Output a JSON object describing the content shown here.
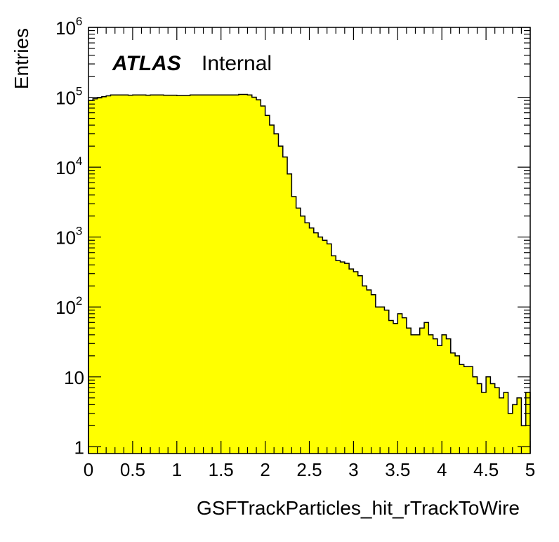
{
  "chart_data": {
    "type": "bar",
    "title": "",
    "label_experiment": "ATLAS",
    "label_status": "Internal",
    "xlabel": "GSFTrackParticles_hit_rTrackToWire",
    "ylabel": "Entries",
    "xlim": [
      0,
      5
    ],
    "ylim": [
      0.8,
      1000000
    ],
    "yscale": "log",
    "grid": false,
    "legend": "none",
    "fill_color": "#ffff00",
    "line_color": "#000000",
    "x_ticks": [
      "0",
      "0.5",
      "1",
      "1.5",
      "2",
      "2.5",
      "3",
      "3.5",
      "4",
      "4.5",
      "5"
    ],
    "y_ticks": [
      {
        "value": 1,
        "base": "1",
        "exp": ""
      },
      {
        "value": 10,
        "base": "10",
        "exp": ""
      },
      {
        "value": 100,
        "base": "10",
        "exp": "2"
      },
      {
        "value": 1000,
        "base": "10",
        "exp": "3"
      },
      {
        "value": 10000,
        "base": "10",
        "exp": "4"
      },
      {
        "value": 100000,
        "base": "10",
        "exp": "5"
      },
      {
        "value": 1000000,
        "base": "10",
        "exp": "6"
      }
    ],
    "bin_width": 0.05,
    "values": [
      90000,
      95000,
      98000,
      102000,
      105000,
      108000,
      108000,
      108000,
      108000,
      107000,
      108000,
      108000,
      108000,
      107000,
      108000,
      108000,
      108000,
      107000,
      107000,
      107000,
      106000,
      106000,
      106000,
      108000,
      108000,
      108000,
      108000,
      108000,
      108000,
      108000,
      108000,
      108000,
      108000,
      108000,
      110000,
      110000,
      108000,
      100000,
      92000,
      75000,
      55000,
      40000,
      30000,
      20000,
      14000,
      8000,
      3800,
      2600,
      2000,
      1600,
      1350,
      1150,
      1000,
      900,
      800,
      540,
      460,
      440,
      420,
      350,
      320,
      280,
      200,
      175,
      150,
      100,
      100,
      90,
      64,
      58,
      80,
      70,
      50,
      40,
      40,
      50,
      60,
      40,
      35,
      28,
      40,
      35,
      22,
      20,
      15,
      14,
      14,
      10,
      8,
      6,
      10,
      8,
      7,
      5,
      6,
      3,
      4,
      5,
      2,
      6
    ]
  }
}
